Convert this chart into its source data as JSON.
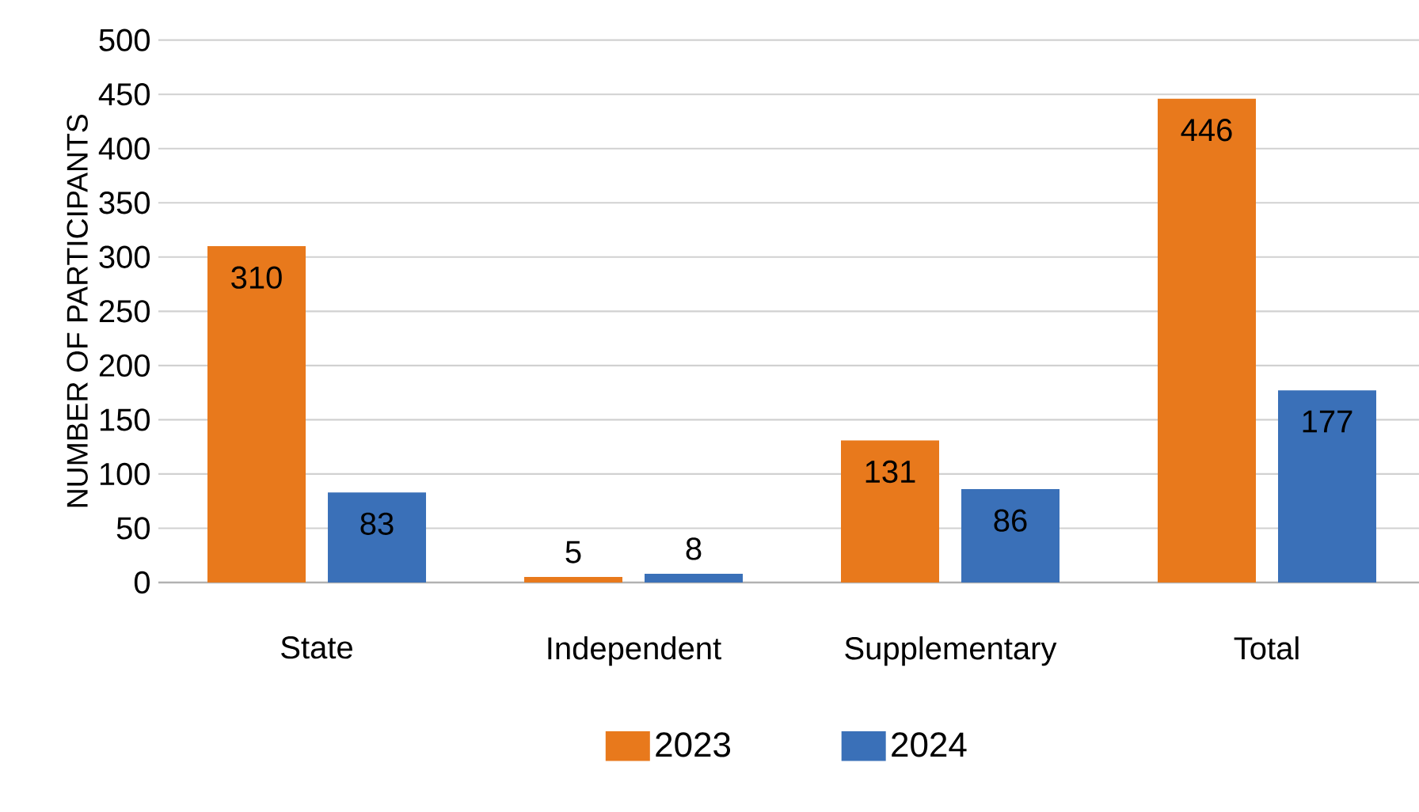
{
  "chart_data": {
    "type": "bar",
    "ylabel": "NUMBER OF PARTICIPANTS",
    "categories": [
      "State",
      "Independent",
      "Supplementary",
      "Total"
    ],
    "series": [
      {
        "name": "2023",
        "color": "#e8791c",
        "values": [
          310,
          5,
          131,
          446
        ]
      },
      {
        "name": "2024",
        "color": "#3a70b8",
        "values": [
          83,
          8,
          86,
          177
        ]
      }
    ],
    "ylim": [
      0,
      500
    ],
    "yticks": [
      0,
      50,
      100,
      150,
      200,
      250,
      300,
      350,
      400,
      450,
      500
    ],
    "grid": "y",
    "legend": "bottom",
    "data_labels": true
  }
}
